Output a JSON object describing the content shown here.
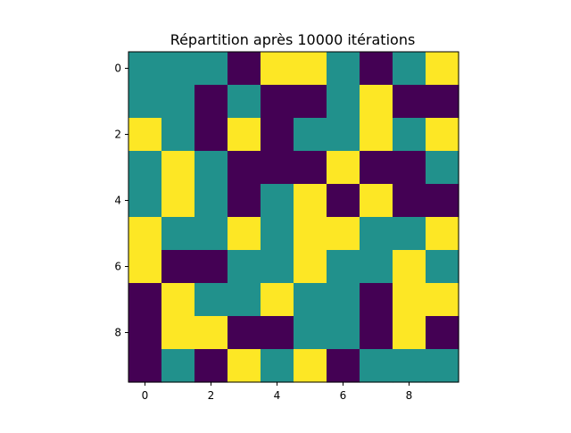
{
  "chart_data": {
    "type": "heatmap",
    "title": "Répartition après 10000 itérations",
    "xlabel": "",
    "ylabel": "",
    "xlim": [
      -0.5,
      9.5
    ],
    "ylim": [
      9.5,
      -0.5
    ],
    "x_ticks": [
      0,
      2,
      4,
      6,
      8
    ],
    "y_ticks": [
      0,
      2,
      4,
      6,
      8
    ],
    "x_tick_labels": [
      "0",
      "2",
      "4",
      "6",
      "8"
    ],
    "y_tick_labels": [
      "0",
      "2",
      "4",
      "6",
      "8"
    ],
    "grid": false,
    "colormap": {
      "0": "#440154",
      "1": "#21918c",
      "2": "#fde725"
    },
    "values": [
      [
        1,
        1,
        1,
        0,
        2,
        2,
        1,
        0,
        1,
        2
      ],
      [
        1,
        1,
        0,
        1,
        0,
        0,
        1,
        2,
        0,
        0
      ],
      [
        2,
        1,
        0,
        2,
        0,
        1,
        1,
        2,
        1,
        2
      ],
      [
        1,
        2,
        1,
        0,
        0,
        0,
        2,
        0,
        0,
        1
      ],
      [
        1,
        2,
        1,
        0,
        1,
        2,
        0,
        2,
        0,
        0
      ],
      [
        2,
        1,
        1,
        2,
        1,
        2,
        2,
        1,
        1,
        2
      ],
      [
        2,
        0,
        0,
        1,
        1,
        2,
        1,
        1,
        2,
        1
      ],
      [
        0,
        2,
        1,
        1,
        2,
        1,
        1,
        0,
        2,
        2
      ],
      [
        0,
        2,
        2,
        0,
        0,
        1,
        1,
        0,
        2,
        0
      ],
      [
        0,
        1,
        0,
        2,
        1,
        2,
        0,
        1,
        1,
        1
      ]
    ]
  }
}
